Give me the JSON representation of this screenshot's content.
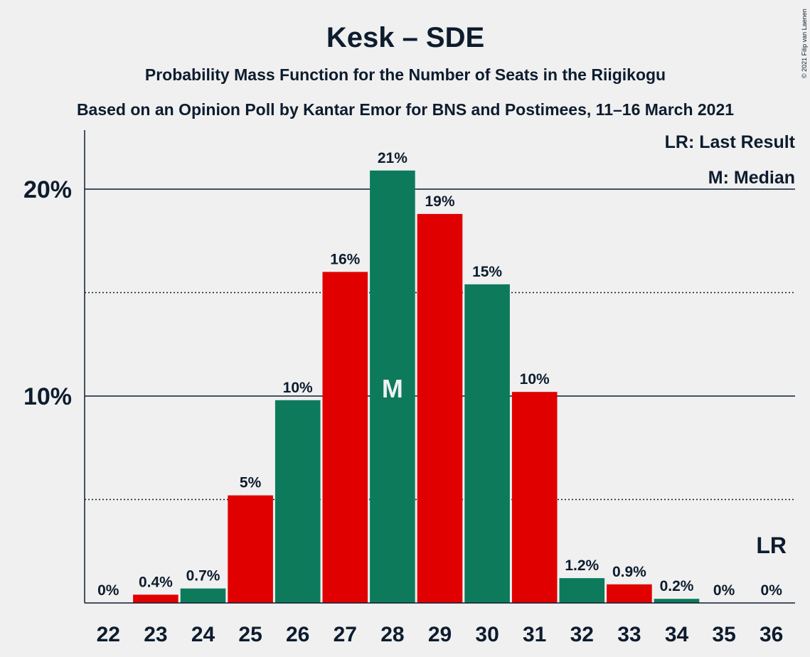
{
  "chart_data": {
    "type": "bar",
    "title": "Kesk – SDE",
    "subtitle": "Probability Mass Function for the Number of Seats in the Riigikogu",
    "subtitle2": "Based on an Opinion Poll by Kantar Emor for BNS and Postimees, 11–16 March 2021",
    "categories": [
      "22",
      "23",
      "24",
      "25",
      "26",
      "27",
      "28",
      "29",
      "30",
      "31",
      "32",
      "33",
      "34",
      "35",
      "36"
    ],
    "values": [
      0.0,
      0.4,
      0.7,
      5.2,
      9.8,
      16.0,
      20.9,
      18.8,
      15.4,
      10.2,
      1.2,
      0.9,
      0.2,
      0.0,
      0.0
    ],
    "labels": [
      "0%",
      "0.4%",
      "0.7%",
      "5%",
      "10%",
      "16%",
      "21%",
      "19%",
      "15%",
      "10%",
      "1.2%",
      "0.9%",
      "0.2%",
      "0%",
      "0%"
    ],
    "bar_colors": [
      "#0d7a5c",
      "#e00000",
      "#0d7a5c",
      "#e00000",
      "#0d7a5c",
      "#e00000",
      "#0d7a5c",
      "#e00000",
      "#0d7a5c",
      "#e00000",
      "#0d7a5c",
      "#e00000",
      "#0d7a5c",
      "#e00000",
      "#0d7a5c"
    ],
    "colors": {
      "green": "#0d7a5c",
      "red": "#e00000"
    },
    "ylim": [
      0,
      22.8
    ],
    "yticks": [
      {
        "value": 10,
        "label": "10%"
      },
      {
        "value": 20,
        "label": "20%"
      }
    ],
    "minor_gridlines": [
      5,
      15
    ],
    "median_category": "28",
    "median_marker": "M",
    "last_result_category": "36",
    "last_result_marker": "LR",
    "legend": [
      "LR: Last Result",
      "M: Median"
    ],
    "legend_position": "top-right",
    "copyright": "© 2021 Filip van Laenen"
  }
}
